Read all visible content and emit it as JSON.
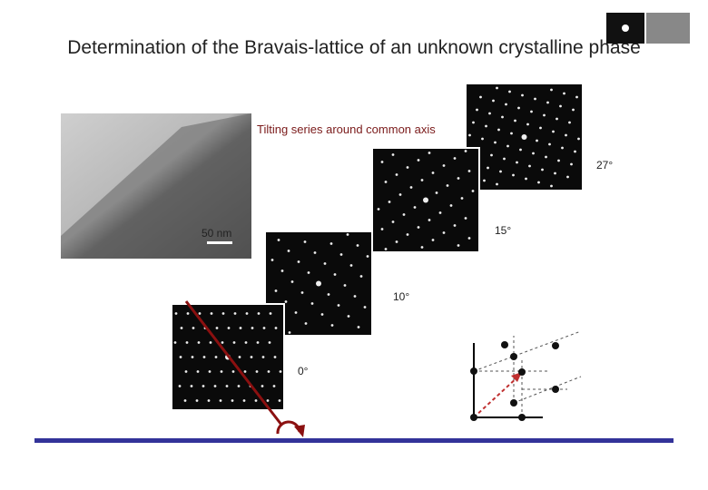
{
  "title": "Determination of the Bravais-lattice of an unknown crystalline phase",
  "scale_bar": "50 nm",
  "caption": "Tilting series around common axis",
  "tilt_labels": [
    "27°",
    "15°",
    "10°",
    "0°"
  ]
}
